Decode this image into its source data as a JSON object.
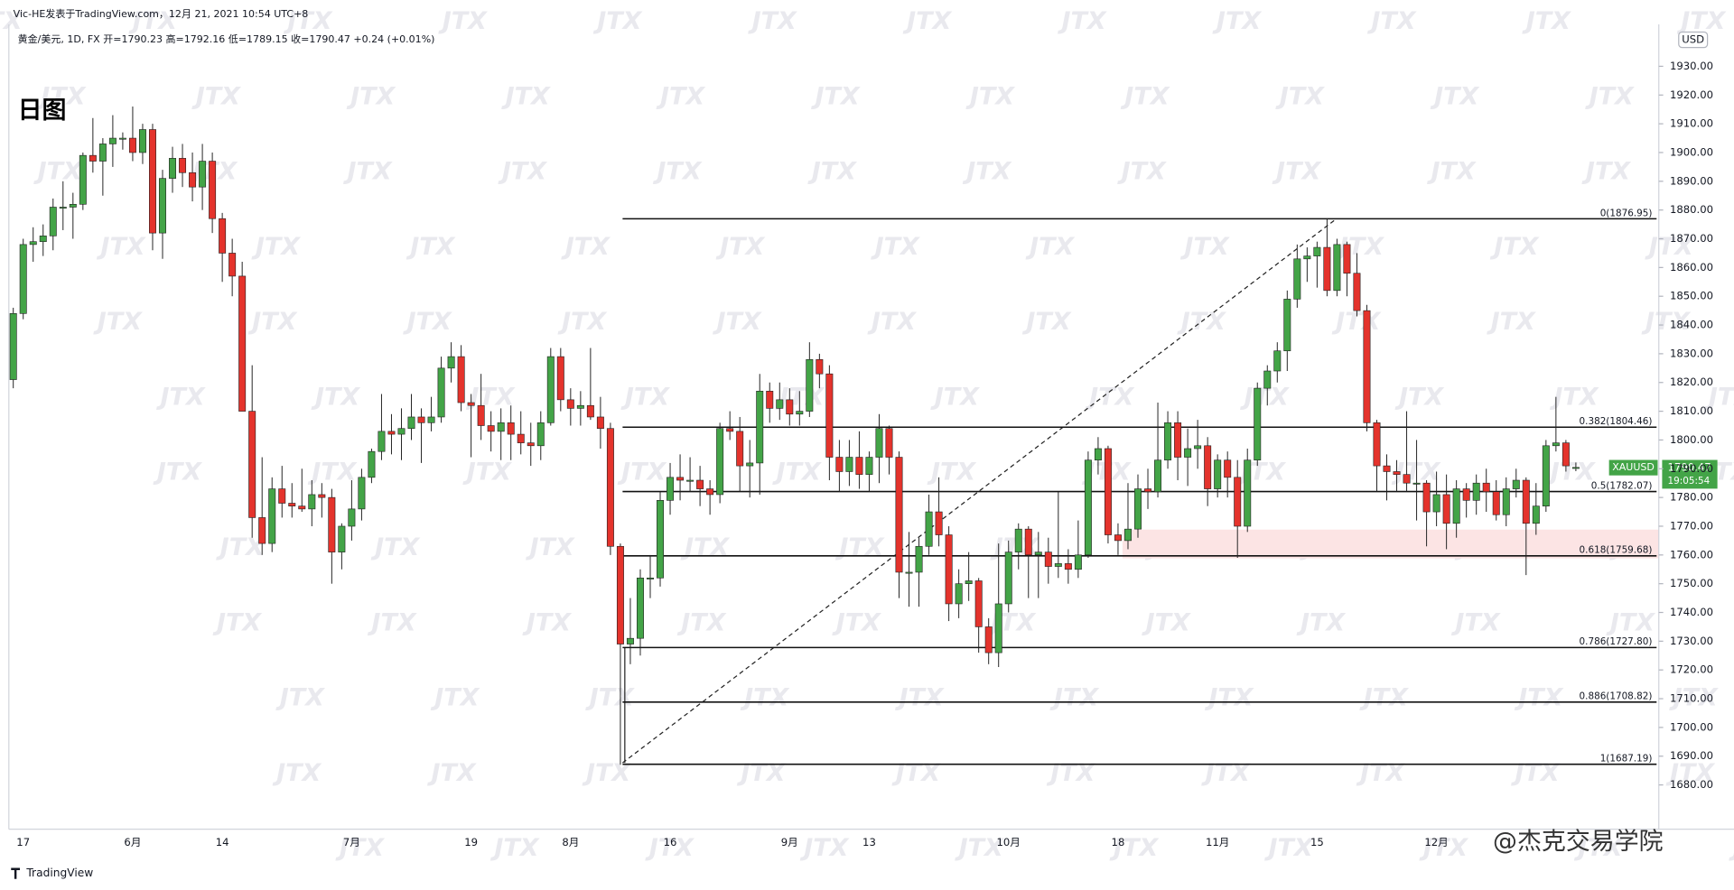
{
  "header": {
    "author_line": "Vic-HE发表于TradingView.com，12月 21, 2021 10:54 UTC+8",
    "symbol_line": "黄金/美元, 1D, FX  开=1790.23 高=1792.16 低=1789.15 收=1790.47 +0.24 (+0.01%)",
    "timeframe_note": "日图",
    "currency": "USD"
  },
  "footer": {
    "brand": "TradingView",
    "credit": "@杰克交易学院"
  },
  "watermark": "JTX",
  "price_tag": {
    "symbol": "XAUUSD",
    "price": "1790.47",
    "countdown": "19:05:54"
  },
  "chart_data": {
    "type": "candlestick",
    "up_color": "#43a447",
    "down_color": "#e4332c",
    "ylim": [
      1664.6,
      1944.6
    ],
    "yticks": [
      {
        "value": 1680,
        "label": "1680.00"
      },
      {
        "value": 1690,
        "label": "1690.00"
      },
      {
        "value": 1700,
        "label": "1700.00"
      },
      {
        "value": 1710,
        "label": "1710.00"
      },
      {
        "value": 1720,
        "label": "1720.00"
      },
      {
        "value": 1730,
        "label": "1730.00"
      },
      {
        "value": 1740,
        "label": "1740.00"
      },
      {
        "value": 1750,
        "label": "1750.00"
      },
      {
        "value": 1760,
        "label": "1760.00"
      },
      {
        "value": 1770,
        "label": "1770.00"
      },
      {
        "value": 1780,
        "label": "1780.00"
      },
      {
        "value": 1790,
        "label": "1790.00"
      },
      {
        "value": 1800,
        "label": "1800.00"
      },
      {
        "value": 1810,
        "label": "1810.00"
      },
      {
        "value": 1820,
        "label": "1820.00"
      },
      {
        "value": 1830,
        "label": "1830.00"
      },
      {
        "value": 1840,
        "label": "1840.00"
      },
      {
        "value": 1850,
        "label": "1850.00"
      },
      {
        "value": 1860,
        "label": "1860.00"
      },
      {
        "value": 1870,
        "label": "1870.00"
      },
      {
        "value": 1880,
        "label": "1880.00"
      },
      {
        "value": 1890,
        "label": "1890.00"
      },
      {
        "value": 1900,
        "label": "1900.00"
      },
      {
        "value": 1910,
        "label": "1910.00"
      },
      {
        "value": 1920,
        "label": "1920.00"
      },
      {
        "value": 1930,
        "label": "1930.00"
      }
    ],
    "fib_levels": [
      {
        "label": "0(1876.95)",
        "value": 1876.95
      },
      {
        "label": "0.382(1804.46)",
        "value": 1804.46
      },
      {
        "label": "0.5(1782.07)",
        "value": 1782.07
      },
      {
        "label": "0.618(1759.68)",
        "value": 1759.68
      },
      {
        "label": "0.786(1727.80)",
        "value": 1727.8
      },
      {
        "label": "0.886(1708.82)",
        "value": 1708.82
      },
      {
        "label": "1(1687.19)",
        "value": 1687.19
      }
    ],
    "categories": [
      null,
      "17",
      null,
      null,
      null,
      null,
      null,
      null,
      null,
      null,
      null,
      null,
      "6月",
      null,
      null,
      null,
      null,
      null,
      null,
      null,
      null,
      "14",
      null,
      null,
      null,
      null,
      null,
      null,
      null,
      null,
      null,
      null,
      null,
      null,
      "7月",
      null,
      null,
      null,
      null,
      null,
      null,
      null,
      null,
      null,
      null,
      null,
      "19",
      null,
      null,
      null,
      null,
      null,
      null,
      null,
      null,
      null,
      "8月",
      null,
      null,
      null,
      null,
      null,
      null,
      null,
      null,
      null,
      "16",
      null,
      null,
      null,
      null,
      null,
      null,
      null,
      null,
      null,
      null,
      null,
      "9月",
      null,
      null,
      null,
      null,
      null,
      null,
      null,
      "13",
      null,
      null,
      null,
      null,
      null,
      null,
      null,
      null,
      null,
      null,
      null,
      null,
      null,
      "10月",
      null,
      null,
      null,
      null,
      null,
      null,
      null,
      null,
      null,
      null,
      "18",
      null,
      null,
      null,
      null,
      null,
      null,
      null,
      null,
      null,
      "11月",
      null,
      null,
      null,
      null,
      null,
      null,
      null,
      null,
      null,
      "15",
      null,
      null,
      null,
      null,
      null,
      null,
      null,
      null,
      null,
      null,
      null,
      "12月",
      null,
      null,
      null,
      null,
      null,
      null,
      null,
      null,
      null,
      null,
      null,
      null,
      null,
      null
    ],
    "ohlc": [
      [
        1821,
        1846,
        1818,
        1844
      ],
      [
        1844,
        1870,
        1842,
        1868
      ],
      [
        1868,
        1874,
        1862,
        1869
      ],
      [
        1869,
        1875,
        1864,
        1871
      ],
      [
        1871,
        1884,
        1866,
        1881
      ],
      [
        1881,
        1890,
        1873,
        1881
      ],
      [
        1881,
        1886,
        1870,
        1882
      ],
      [
        1882,
        1900,
        1880,
        1899
      ],
      [
        1899,
        1912,
        1893,
        1897
      ],
      [
        1897,
        1905,
        1885,
        1903
      ],
      [
        1903,
        1913,
        1895,
        1905
      ],
      [
        1905,
        1907,
        1901,
        1905
      ],
      [
        1905,
        1916,
        1897,
        1900
      ],
      [
        1900,
        1910,
        1896,
        1908
      ],
      [
        1908,
        1910,
        1866,
        1872
      ],
      [
        1872,
        1894,
        1863,
        1891
      ],
      [
        1891,
        1902,
        1886,
        1898
      ],
      [
        1898,
        1903,
        1888,
        1893
      ],
      [
        1893,
        1900,
        1883,
        1888
      ],
      [
        1888,
        1903,
        1880,
        1897
      ],
      [
        1897,
        1900,
        1872,
        1877
      ],
      [
        1877,
        1879,
        1855,
        1865
      ],
      [
        1865,
        1870,
        1850,
        1857
      ],
      [
        1857,
        1862,
        1810,
        1810
      ],
      [
        1810,
        1826,
        1766,
        1773
      ],
      [
        1773,
        1794,
        1760,
        1764
      ],
      [
        1764,
        1787,
        1761,
        1783
      ],
      [
        1783,
        1791,
        1773,
        1778
      ],
      [
        1778,
        1785,
        1773,
        1777
      ],
      [
        1777,
        1790,
        1775,
        1776
      ],
      [
        1776,
        1786,
        1770,
        1781
      ],
      [
        1781,
        1785,
        1773,
        1780
      ],
      [
        1780,
        1783,
        1750,
        1761
      ],
      [
        1761,
        1771,
        1755,
        1770
      ],
      [
        1770,
        1786,
        1765,
        1776
      ],
      [
        1776,
        1790,
        1772,
        1787
      ],
      [
        1787,
        1797,
        1785,
        1796
      ],
      [
        1796,
        1816,
        1793,
        1803
      ],
      [
        1803,
        1809,
        1795,
        1802
      ],
      [
        1802,
        1811,
        1793,
        1804
      ],
      [
        1804,
        1816,
        1800,
        1808
      ],
      [
        1808,
        1811,
        1792,
        1806
      ],
      [
        1806,
        1815,
        1803,
        1808
      ],
      [
        1808,
        1829,
        1806,
        1825
      ],
      [
        1825,
        1834,
        1820,
        1829
      ],
      [
        1829,
        1833,
        1810,
        1813
      ],
      [
        1813,
        1816,
        1794,
        1812
      ],
      [
        1812,
        1823,
        1800,
        1805
      ],
      [
        1805,
        1810,
        1796,
        1803
      ],
      [
        1803,
        1811,
        1793,
        1806
      ],
      [
        1806,
        1812,
        1793,
        1802
      ],
      [
        1802,
        1810,
        1795,
        1799
      ],
      [
        1799,
        1806,
        1791,
        1798
      ],
      [
        1798,
        1810,
        1793,
        1806
      ],
      [
        1806,
        1832,
        1805,
        1829
      ],
      [
        1829,
        1832,
        1810,
        1814
      ],
      [
        1814,
        1818,
        1805,
        1811
      ],
      [
        1811,
        1817,
        1805,
        1812
      ],
      [
        1812,
        1832,
        1807,
        1808
      ],
      [
        1808,
        1815,
        1797,
        1804
      ],
      [
        1804,
        1806,
        1760,
        1763
      ],
      [
        1763,
        1764,
        1687,
        1729
      ],
      [
        1729,
        1745,
        1722,
        1731
      ],
      [
        1731,
        1755,
        1725,
        1752
      ],
      [
        1752,
        1760,
        1745,
        1752
      ],
      [
        1752,
        1782,
        1749,
        1779
      ],
      [
        1779,
        1792,
        1774,
        1787
      ],
      [
        1787,
        1795,
        1779,
        1786
      ],
      [
        1786,
        1794,
        1782,
        1786
      ],
      [
        1786,
        1791,
        1777,
        1783
      ],
      [
        1783,
        1786,
        1774,
        1781
      ],
      [
        1781,
        1806,
        1778,
        1804
      ],
      [
        1804,
        1810,
        1800,
        1803
      ],
      [
        1803,
        1808,
        1782,
        1791
      ],
      [
        1791,
        1800,
        1780,
        1792
      ],
      [
        1792,
        1823,
        1781,
        1817
      ],
      [
        1817,
        1820,
        1806,
        1811
      ],
      [
        1811,
        1820,
        1807,
        1814
      ],
      [
        1814,
        1818,
        1805,
        1809
      ],
      [
        1809,
        1817,
        1805,
        1810
      ],
      [
        1810,
        1834,
        1808,
        1828
      ],
      [
        1828,
        1830,
        1818,
        1823
      ],
      [
        1823,
        1826,
        1786,
        1794
      ],
      [
        1794,
        1800,
        1782,
        1789
      ],
      [
        1789,
        1800,
        1784,
        1794
      ],
      [
        1794,
        1803,
        1783,
        1788
      ],
      [
        1788,
        1796,
        1782,
        1794
      ],
      [
        1794,
        1809,
        1785,
        1804
      ],
      [
        1804,
        1805,
        1788,
        1794
      ],
      [
        1794,
        1796,
        1745,
        1754
      ],
      [
        1754,
        1768,
        1742,
        1754
      ],
      [
        1754,
        1766,
        1742,
        1763
      ],
      [
        1763,
        1781,
        1760,
        1775
      ],
      [
        1775,
        1787,
        1763,
        1767
      ],
      [
        1767,
        1770,
        1737,
        1743
      ],
      [
        1743,
        1755,
        1738,
        1750
      ],
      [
        1750,
        1761,
        1744,
        1751
      ],
      [
        1751,
        1752,
        1726,
        1735
      ],
      [
        1735,
        1738,
        1722,
        1726
      ],
      [
        1726,
        1764,
        1721,
        1743
      ],
      [
        1743,
        1765,
        1740,
        1761
      ],
      [
        1761,
        1771,
        1755,
        1769
      ],
      [
        1769,
        1770,
        1745,
        1760
      ],
      [
        1760,
        1768,
        1745,
        1761
      ],
      [
        1761,
        1766,
        1750,
        1756
      ],
      [
        1756,
        1782,
        1752,
        1757
      ],
      [
        1757,
        1762,
        1750,
        1755
      ],
      [
        1755,
        1772,
        1752,
        1760
      ],
      [
        1760,
        1796,
        1759,
        1793
      ],
      [
        1793,
        1801,
        1788,
        1797
      ],
      [
        1797,
        1798,
        1764,
        1767
      ],
      [
        1767,
        1771,
        1760,
        1765
      ],
      [
        1765,
        1785,
        1762,
        1769
      ],
      [
        1769,
        1788,
        1766,
        1783
      ],
      [
        1783,
        1790,
        1776,
        1782
      ],
      [
        1782,
        1813,
        1780,
        1793
      ],
      [
        1793,
        1810,
        1790,
        1806
      ],
      [
        1806,
        1810,
        1786,
        1794
      ],
      [
        1794,
        1804,
        1784,
        1797
      ],
      [
        1797,
        1807,
        1790,
        1798
      ],
      [
        1798,
        1801,
        1777,
        1783
      ],
      [
        1783,
        1795,
        1780,
        1793
      ],
      [
        1793,
        1796,
        1780,
        1787
      ],
      [
        1787,
        1793,
        1759,
        1770
      ],
      [
        1770,
        1797,
        1768,
        1793
      ],
      [
        1793,
        1820,
        1791,
        1818
      ],
      [
        1818,
        1826,
        1812,
        1824
      ],
      [
        1824,
        1834,
        1820,
        1831
      ],
      [
        1831,
        1852,
        1824,
        1849
      ],
      [
        1849,
        1868,
        1846,
        1863
      ],
      [
        1863,
        1867,
        1855,
        1864
      ],
      [
        1864,
        1869,
        1853,
        1867
      ],
      [
        1867,
        1877,
        1850,
        1852
      ],
      [
        1852,
        1870,
        1850,
        1868
      ],
      [
        1868,
        1869,
        1850,
        1858
      ],
      [
        1858,
        1865,
        1843,
        1845
      ],
      [
        1845,
        1847,
        1803,
        1806
      ],
      [
        1806,
        1807,
        1782,
        1791
      ],
      [
        1791,
        1795,
        1779,
        1789
      ],
      [
        1789,
        1793,
        1782,
        1788
      ],
      [
        1788,
        1810,
        1782,
        1785
      ],
      [
        1785,
        1800,
        1772,
        1785
      ],
      [
        1785,
        1786,
        1763,
        1775
      ],
      [
        1775,
        1789,
        1770,
        1781
      ],
      [
        1781,
        1788,
        1762,
        1771
      ],
      [
        1771,
        1786,
        1766,
        1783
      ],
      [
        1783,
        1785,
        1773,
        1779
      ],
      [
        1779,
        1788,
        1774,
        1785
      ],
      [
        1785,
        1790,
        1775,
        1782
      ],
      [
        1782,
        1786,
        1772,
        1774
      ],
      [
        1774,
        1787,
        1770,
        1783
      ],
      [
        1783,
        1790,
        1780,
        1786
      ],
      [
        1786,
        1787,
        1753,
        1771
      ],
      [
        1771,
        1785,
        1767,
        1777
      ],
      [
        1777,
        1800,
        1775,
        1798
      ],
      [
        1798,
        1815,
        1796,
        1799
      ],
      [
        1799,
        1800,
        1789,
        1791
      ],
      [
        1790.23,
        1792.16,
        1789.15,
        1790.47
      ]
    ]
  }
}
